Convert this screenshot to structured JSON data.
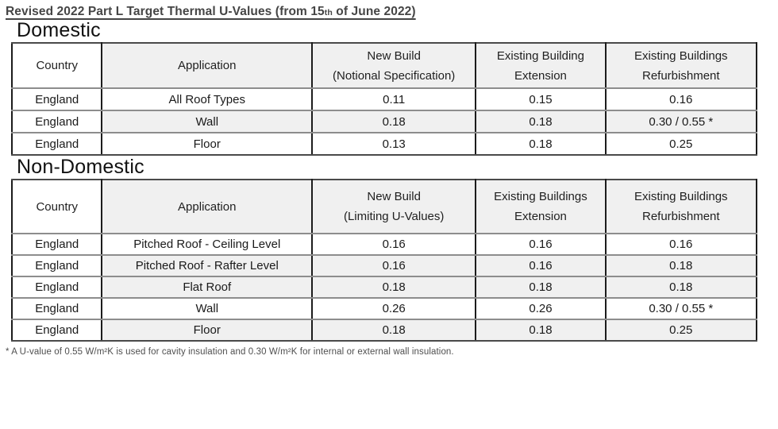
{
  "title": {
    "prefix": "Revised 2022 Part L Target Thermal U-Values (from 15",
    "ordinal": "th",
    "suffix": " of June 2022)"
  },
  "sections": [
    {
      "heading": "Domestic",
      "columns": [
        [
          "Country"
        ],
        [
          "Application"
        ],
        [
          "New Build",
          "(Notional Specification)"
        ],
        [
          "Existing Building",
          "Extension"
        ],
        [
          "Existing Buildings",
          "Refurbishment"
        ]
      ],
      "rows": [
        {
          "country": "England",
          "application": "All Roof Types",
          "values": [
            "0.11",
            "0.15",
            "0.16"
          ],
          "shaded": false
        },
        {
          "country": "England",
          "application": "Wall",
          "values": [
            "0.18",
            "0.18",
            "0.30 / 0.55 *"
          ],
          "shaded": true
        },
        {
          "country": "England",
          "application": "Floor",
          "values": [
            "0.13",
            "0.18",
            "0.25"
          ],
          "shaded": false
        }
      ]
    },
    {
      "heading": "Non-Domestic",
      "columns": [
        [
          "Country"
        ],
        [
          "Application"
        ],
        [
          "New Build",
          "(Limiting U-Values)"
        ],
        [
          "Existing Buildings",
          "Extension"
        ],
        [
          "Existing Buildings",
          "Refurbishment"
        ]
      ],
      "rows": [
        {
          "country": "England",
          "application": "Pitched Roof - Ceiling Level",
          "values": [
            "0.16",
            "0.16",
            "0.16"
          ],
          "shaded": false
        },
        {
          "country": "England",
          "application": "Pitched Roof - Rafter Level",
          "values": [
            "0.16",
            "0.16",
            "0.18"
          ],
          "shaded": true
        },
        {
          "country": "England",
          "application": "Flat Roof",
          "values": [
            "0.18",
            "0.18",
            "0.18"
          ],
          "shaded": true
        },
        {
          "country": "England",
          "application": "Wall",
          "values": [
            "0.26",
            "0.26",
            "0.30 / 0.55 *"
          ],
          "shaded": false
        },
        {
          "country": "England",
          "application": "Floor",
          "values": [
            "0.18",
            "0.18",
            "0.25"
          ],
          "shaded": true
        }
      ]
    }
  ],
  "footnote": "* A U-value of 0.55 W/m²K is used for cavity insulation and 0.30 W/m²K for internal or external wall insulation.",
  "colors": {
    "shaded_cell": "#f0f0f0",
    "vertical_border": "#1c1c1c",
    "horizontal_border": "#8d8d8d",
    "title_text": "#454545",
    "body_text": "#1a1a1a"
  }
}
